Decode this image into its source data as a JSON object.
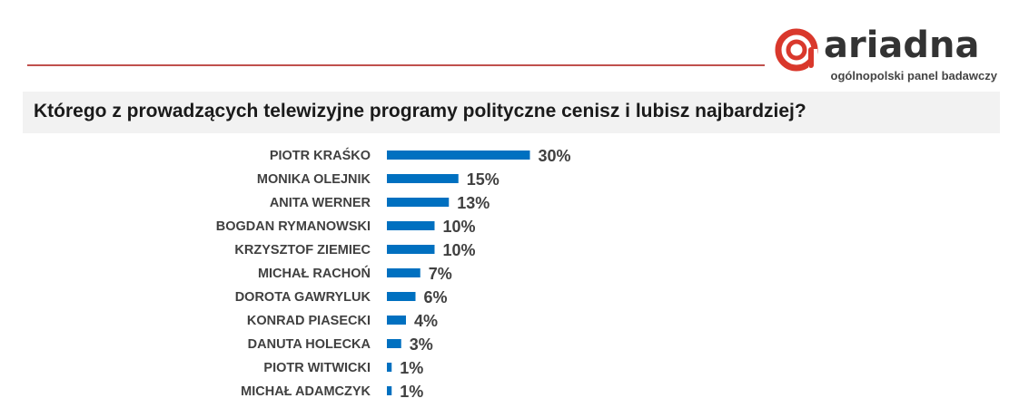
{
  "brand": {
    "name": "ariadna",
    "tagline": "ogólnopolski panel badawczy",
    "accent_color": "#c0504d",
    "logo_icon": "ariadna-spiral-logo-icon"
  },
  "question": "Którego z prowadzących telewizyjne programy polityczne cenisz i lubisz najbardziej?",
  "chart_data": {
    "type": "bar",
    "orientation": "horizontal",
    "title": "Którego z prowadzących telewizyjne programy polityczne cenisz i lubisz najbardziej?",
    "categories": [
      "PIOTR KRAŚKO",
      "MONIKA OLEJNIK",
      "ANITA WERNER",
      "BOGDAN RYMANOWSKI",
      "KRZYSZTOF ZIEMIEC",
      "MICHAŁ RACHOŃ",
      "DOROTA GAWRYLUK",
      "KONRAD PIASECKI",
      "DANUTA HOLECKA",
      "PIOTR WITWICKI",
      "MICHAŁ ADAMCZYK"
    ],
    "values": [
      30,
      15,
      13,
      10,
      10,
      7,
      6,
      4,
      3,
      1,
      1
    ],
    "value_labels": [
      "30%",
      "15%",
      "13%",
      "10%",
      "10%",
      "7%",
      "6%",
      "4%",
      "3%",
      "1%",
      "1%"
    ],
    "unit": "%",
    "bar_color": "#0070c0",
    "label_color": "#404040",
    "grid": false,
    "legend": "none"
  }
}
